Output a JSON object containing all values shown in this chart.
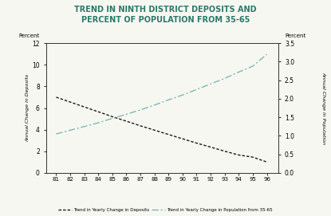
{
  "title_line1": "TREND IN NINTH DISTRICT DEPOSITS AND",
  "title_line2": "PERCENT OF POPULATION FROM 35-65",
  "title_color": "#2a7a6a",
  "years": [
    81,
    82,
    83,
    84,
    85,
    86,
    87,
    88,
    89,
    90,
    91,
    92,
    93,
    94,
    95,
    96
  ],
  "deposits": [
    7.0,
    6.55,
    6.1,
    5.65,
    5.2,
    4.78,
    4.35,
    3.95,
    3.55,
    3.15,
    2.75,
    2.38,
    2.0,
    1.65,
    1.45,
    1.0
  ],
  "population_right": [
    1.05,
    1.15,
    1.25,
    1.35,
    1.47,
    1.58,
    1.7,
    1.83,
    1.97,
    2.1,
    2.25,
    2.4,
    2.55,
    2.72,
    2.88,
    3.2
  ],
  "deposits_color": "#1a1a1a",
  "population_color": "#7ab8b8",
  "left_ylabel": "Annual Change in Deposits",
  "right_ylabel": "Annual Change in Population",
  "left_label": "Percent",
  "right_label": "Percent",
  "ylim_left": [
    0,
    12
  ],
  "ylim_right": [
    0,
    3.5
  ],
  "yticks_left": [
    0,
    2,
    4,
    6,
    8,
    10,
    12
  ],
  "yticks_right": [
    0,
    0.5,
    1.0,
    1.5,
    2.0,
    2.5,
    3.0,
    3.5
  ],
  "legend1": "Trend in Yearly Change in Deposits",
  "legend2": "Trend in Yearly Change in Population from 35-65",
  "bg_color": "#f7f7f2"
}
